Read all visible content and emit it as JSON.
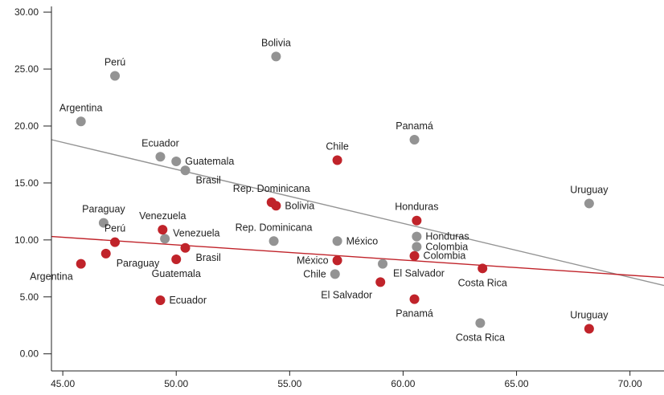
{
  "chart_data": {
    "type": "scatter",
    "xlim": [
      44.5,
      71.5
    ],
    "ylim": [
      -1.5,
      30.5
    ],
    "x_ticks": [
      "45.00",
      "50.00",
      "55.00",
      "60.00",
      "65.00",
      "70.00"
    ],
    "y_ticks": [
      "0.00",
      "5.00",
      "10.00",
      "15.00",
      "20.00",
      "25.00",
      "30.00"
    ],
    "grid": false,
    "legend": "none",
    "series": [
      {
        "color": "#939393",
        "points": [
          {
            "label": "Bolivia",
            "x": 54.4,
            "y": 26.1,
            "label_pos": "top"
          },
          {
            "label": "Perú",
            "x": 47.3,
            "y": 24.4,
            "label_pos": "top"
          },
          {
            "label": "Argentina",
            "x": 45.8,
            "y": 20.4,
            "label_pos": "top"
          },
          {
            "label": "Panamá",
            "x": 60.5,
            "y": 18.8,
            "label_pos": "top"
          },
          {
            "label": "Ecuador",
            "x": 49.3,
            "y": 17.3,
            "label_pos": "top"
          },
          {
            "label": "Guatemala",
            "x": 50.0,
            "y": 16.9,
            "label_pos": "right"
          },
          {
            "label": "Brasil",
            "x": 50.4,
            "y": 16.1,
            "label_pos": "right-below"
          },
          {
            "label": "Uruguay",
            "x": 68.2,
            "y": 13.2,
            "label_pos": "top"
          },
          {
            "label": "Paraguay",
            "x": 46.8,
            "y": 11.5,
            "label_pos": "top"
          },
          {
            "label": "Venezuela",
            "x": 49.5,
            "y": 10.1,
            "label_pos": "right-above"
          },
          {
            "label": "Rep. Dominicana",
            "x": 54.3,
            "y": 9.9,
            "label_pos": "top"
          },
          {
            "label": "México",
            "x": 57.1,
            "y": 9.9,
            "label_pos": "right"
          },
          {
            "label": "Honduras",
            "x": 60.6,
            "y": 10.3,
            "label_pos": "right"
          },
          {
            "label": "Colombia",
            "x": 60.6,
            "y": 9.4,
            "label_pos": "right"
          },
          {
            "label": "El Salvador",
            "x": 59.1,
            "y": 7.9,
            "label_pos": "right-below"
          },
          {
            "label": "Chile",
            "x": 57.0,
            "y": 7.0,
            "label_pos": "left"
          },
          {
            "label": "Costa Rica",
            "x": 63.4,
            "y": 2.7,
            "label_pos": "below"
          }
        ],
        "trendline": [
          [
            44.5,
            18.8
          ],
          [
            71.5,
            6.0
          ]
        ]
      },
      {
        "color": "#c0232a",
        "points": [
          {
            "label": "Chile",
            "x": 57.1,
            "y": 17.0,
            "label_pos": "top"
          },
          {
            "label": "Rep. Dominicana",
            "x": 54.2,
            "y": 13.3,
            "label_pos": "top"
          },
          {
            "label": "Bolivia",
            "x": 54.4,
            "y": 13.0,
            "label_pos": "right"
          },
          {
            "label": "Honduras",
            "x": 60.6,
            "y": 11.7,
            "label_pos": "top"
          },
          {
            "label": "Venezuela",
            "x": 49.4,
            "y": 10.9,
            "label_pos": "top"
          },
          {
            "label": "Perú",
            "x": 47.3,
            "y": 9.8,
            "label_pos": "top"
          },
          {
            "label": "Brasil",
            "x": 50.4,
            "y": 9.3,
            "label_pos": "right-below"
          },
          {
            "label": "Paraguay",
            "x": 46.9,
            "y": 8.8,
            "label_pos": "right-below"
          },
          {
            "label": "Colombia",
            "x": 60.5,
            "y": 8.6,
            "label_pos": "right"
          },
          {
            "label": "Guatemala",
            "x": 50.0,
            "y": 8.3,
            "label_pos": "below"
          },
          {
            "label": "México",
            "x": 57.1,
            "y": 8.2,
            "label_pos": "left"
          },
          {
            "label": "Argentina",
            "x": 45.8,
            "y": 7.9,
            "label_pos": "below-left"
          },
          {
            "label": "Costa Rica",
            "x": 63.5,
            "y": 7.5,
            "label_pos": "below"
          },
          {
            "label": "El Salvador",
            "x": 59.0,
            "y": 6.3,
            "label_pos": "below-left"
          },
          {
            "label": "Panamá",
            "x": 60.5,
            "y": 4.8,
            "label_pos": "below"
          },
          {
            "label": "Ecuador",
            "x": 49.3,
            "y": 4.7,
            "label_pos": "right"
          },
          {
            "label": "Uruguay",
            "x": 68.2,
            "y": 2.2,
            "label_pos": "top"
          }
        ],
        "trendline": [
          [
            44.5,
            10.3
          ],
          [
            71.5,
            6.7
          ]
        ]
      }
    ]
  }
}
